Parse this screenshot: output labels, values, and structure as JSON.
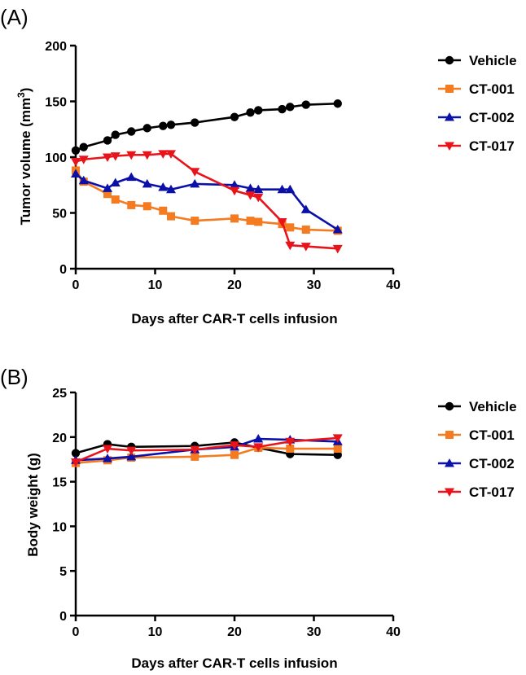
{
  "chart_data": [
    {
      "panel": "(A)",
      "type": "line",
      "xlabel": "Days after CAR-T cells infusion",
      "ylabel": "Tumor volume (mm³)",
      "ylabel_main": "Tumor volume (mm",
      "ylabel_sup": "3",
      "ylabel_end": ")",
      "xlim": [
        0,
        40
      ],
      "ylim": [
        0,
        200
      ],
      "xticks": [
        0,
        10,
        20,
        30,
        40
      ],
      "yticks": [
        0,
        50,
        100,
        150,
        200
      ],
      "legend_position": "right",
      "series": [
        {
          "name": "Vehicle",
          "color": "#000000",
          "marker": "circle",
          "x": [
            0,
            1,
            4,
            5,
            7,
            9,
            11,
            12,
            15,
            20,
            22,
            23,
            26,
            27,
            29,
            33
          ],
          "y": [
            106,
            109,
            115,
            120,
            123,
            126,
            128,
            129,
            131,
            136,
            140,
            142,
            143,
            145,
            147,
            148
          ]
        },
        {
          "name": "CT-001",
          "color": "#f47b20",
          "marker": "square",
          "x": [
            0,
            1,
            4,
            5,
            7,
            9,
            11,
            12,
            15,
            20,
            22,
            23,
            26,
            27,
            29,
            33
          ],
          "y": [
            88,
            78,
            67,
            62,
            57,
            56,
            52,
            47,
            43,
            45,
            43,
            42,
            40,
            37,
            35,
            34
          ]
        },
        {
          "name": "CT-002",
          "color": "#0a10a8",
          "marker": "triangle-up",
          "x": [
            0,
            1,
            4,
            5,
            7,
            9,
            11,
            12,
            15,
            20,
            22,
            23,
            26,
            27,
            29,
            33
          ],
          "y": [
            85,
            79,
            72,
            77,
            82,
            76,
            73,
            71,
            76,
            75,
            72,
            71,
            71,
            71,
            53,
            35
          ]
        },
        {
          "name": "CT-017",
          "color": "#e8141c",
          "marker": "triangle-down",
          "x": [
            0,
            1,
            4,
            5,
            7,
            9,
            11,
            12,
            15,
            20,
            22,
            23,
            26,
            27,
            29,
            33
          ],
          "y": [
            96,
            98,
            100,
            101,
            102,
            102,
            103,
            103,
            87,
            70,
            66,
            64,
            42,
            21,
            20,
            18
          ]
        }
      ]
    },
    {
      "panel": "(B)",
      "type": "line",
      "xlabel": "Days after CAR-T cells infusion",
      "ylabel": "Body weight (g)",
      "xlim": [
        0,
        40
      ],
      "ylim": [
        0,
        25
      ],
      "xticks": [
        0,
        10,
        20,
        30,
        40
      ],
      "yticks": [
        0,
        5,
        10,
        15,
        20,
        25
      ],
      "legend_position": "right",
      "series": [
        {
          "name": "Vehicle",
          "color": "#000000",
          "marker": "circle",
          "x": [
            0,
            4,
            7,
            15,
            20,
            23,
            27,
            33
          ],
          "y": [
            18.2,
            19.2,
            18.9,
            19.0,
            19.4,
            18.8,
            18.1,
            18.0
          ]
        },
        {
          "name": "CT-001",
          "color": "#f47b20",
          "marker": "square",
          "x": [
            0,
            4,
            7,
            15,
            20,
            23,
            27,
            33
          ],
          "y": [
            17.1,
            17.4,
            17.7,
            17.8,
            18.0,
            18.8,
            18.7,
            18.7
          ]
        },
        {
          "name": "CT-002",
          "color": "#0a10a8",
          "marker": "triangle-up",
          "x": [
            0,
            4,
            7,
            15,
            20,
            23,
            27,
            33
          ],
          "y": [
            17.4,
            17.6,
            17.8,
            18.6,
            18.9,
            19.8,
            19.7,
            19.5
          ]
        },
        {
          "name": "CT-017",
          "color": "#e8141c",
          "marker": "triangle-down",
          "x": [
            0,
            4,
            7,
            15,
            20,
            23,
            27,
            33
          ],
          "y": [
            17.2,
            18.7,
            18.5,
            18.6,
            19.1,
            18.9,
            19.5,
            19.9
          ]
        }
      ]
    }
  ]
}
